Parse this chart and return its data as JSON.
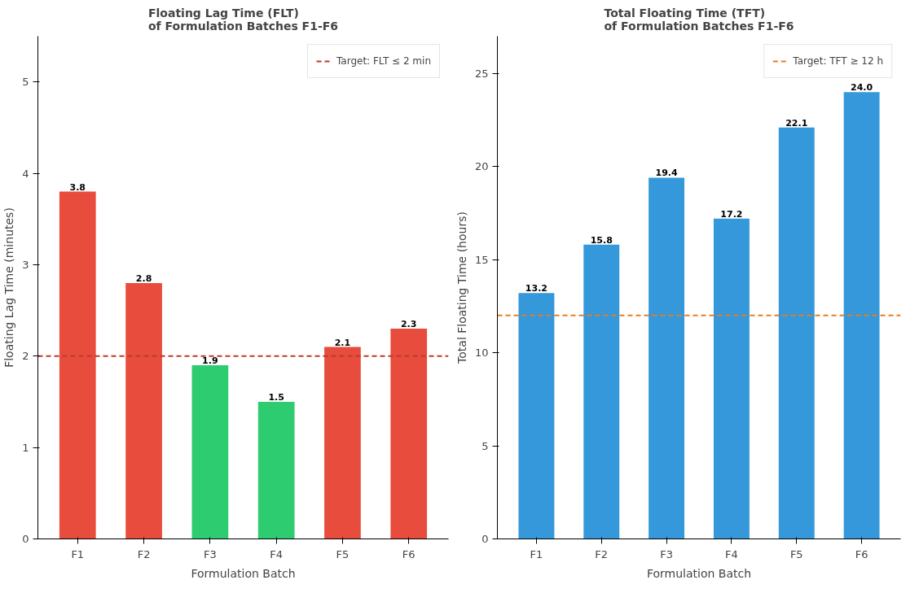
{
  "chart_data": [
    {
      "type": "bar",
      "title": "Floating Lag Time (FLT)\nof Formulation Batches F1-F6",
      "xlabel": "Formulation Batch",
      "ylabel": "Floating Lag Time (minutes)",
      "categories": [
        "F1",
        "F2",
        "F3",
        "F4",
        "F5",
        "F6"
      ],
      "values": [
        3.8,
        2.8,
        1.9,
        1.5,
        2.1,
        2.3
      ],
      "colors": [
        "#e74c3c",
        "#e74c3c",
        "#2ecc71",
        "#2ecc71",
        "#e74c3c",
        "#e74c3c"
      ],
      "ylim": [
        0,
        5.5
      ],
      "yticks": [
        0,
        1,
        2,
        3,
        4,
        5
      ],
      "grid": false,
      "legend": "top right",
      "data_labels": true,
      "ref_lines": [
        {
          "axis": "y",
          "value": 2,
          "label": "Target: FLT ≤ 2 min",
          "color": "#c0392b",
          "line_style": "dashed"
        }
      ]
    },
    {
      "type": "bar",
      "title": "Total Floating Time (TFT)\nof Formulation Batches F1-F6",
      "xlabel": "Formulation Batch",
      "ylabel": "Total Floating Time (hours)",
      "categories": [
        "F1",
        "F2",
        "F3",
        "F4",
        "F5",
        "F6"
      ],
      "values": [
        13.2,
        15.8,
        19.4,
        17.2,
        22.1,
        24.0
      ],
      "value_labels": [
        "13.2",
        "15.8",
        "19.4",
        "17.2",
        "22.1",
        "24.0"
      ],
      "colors": [
        "#3498db",
        "#3498db",
        "#3498db",
        "#3498db",
        "#3498db",
        "#3498db"
      ],
      "ylim": [
        0,
        27
      ],
      "yticks": [
        0,
        5,
        10,
        15,
        20,
        25
      ],
      "grid": false,
      "legend": "top right",
      "ref_lines": [
        {
          "axis": "y",
          "value": 12,
          "label": "Target: TFT ≥ 12 h",
          "color": "#e67e22",
          "line_style": "dashed"
        }
      ]
    }
  ]
}
